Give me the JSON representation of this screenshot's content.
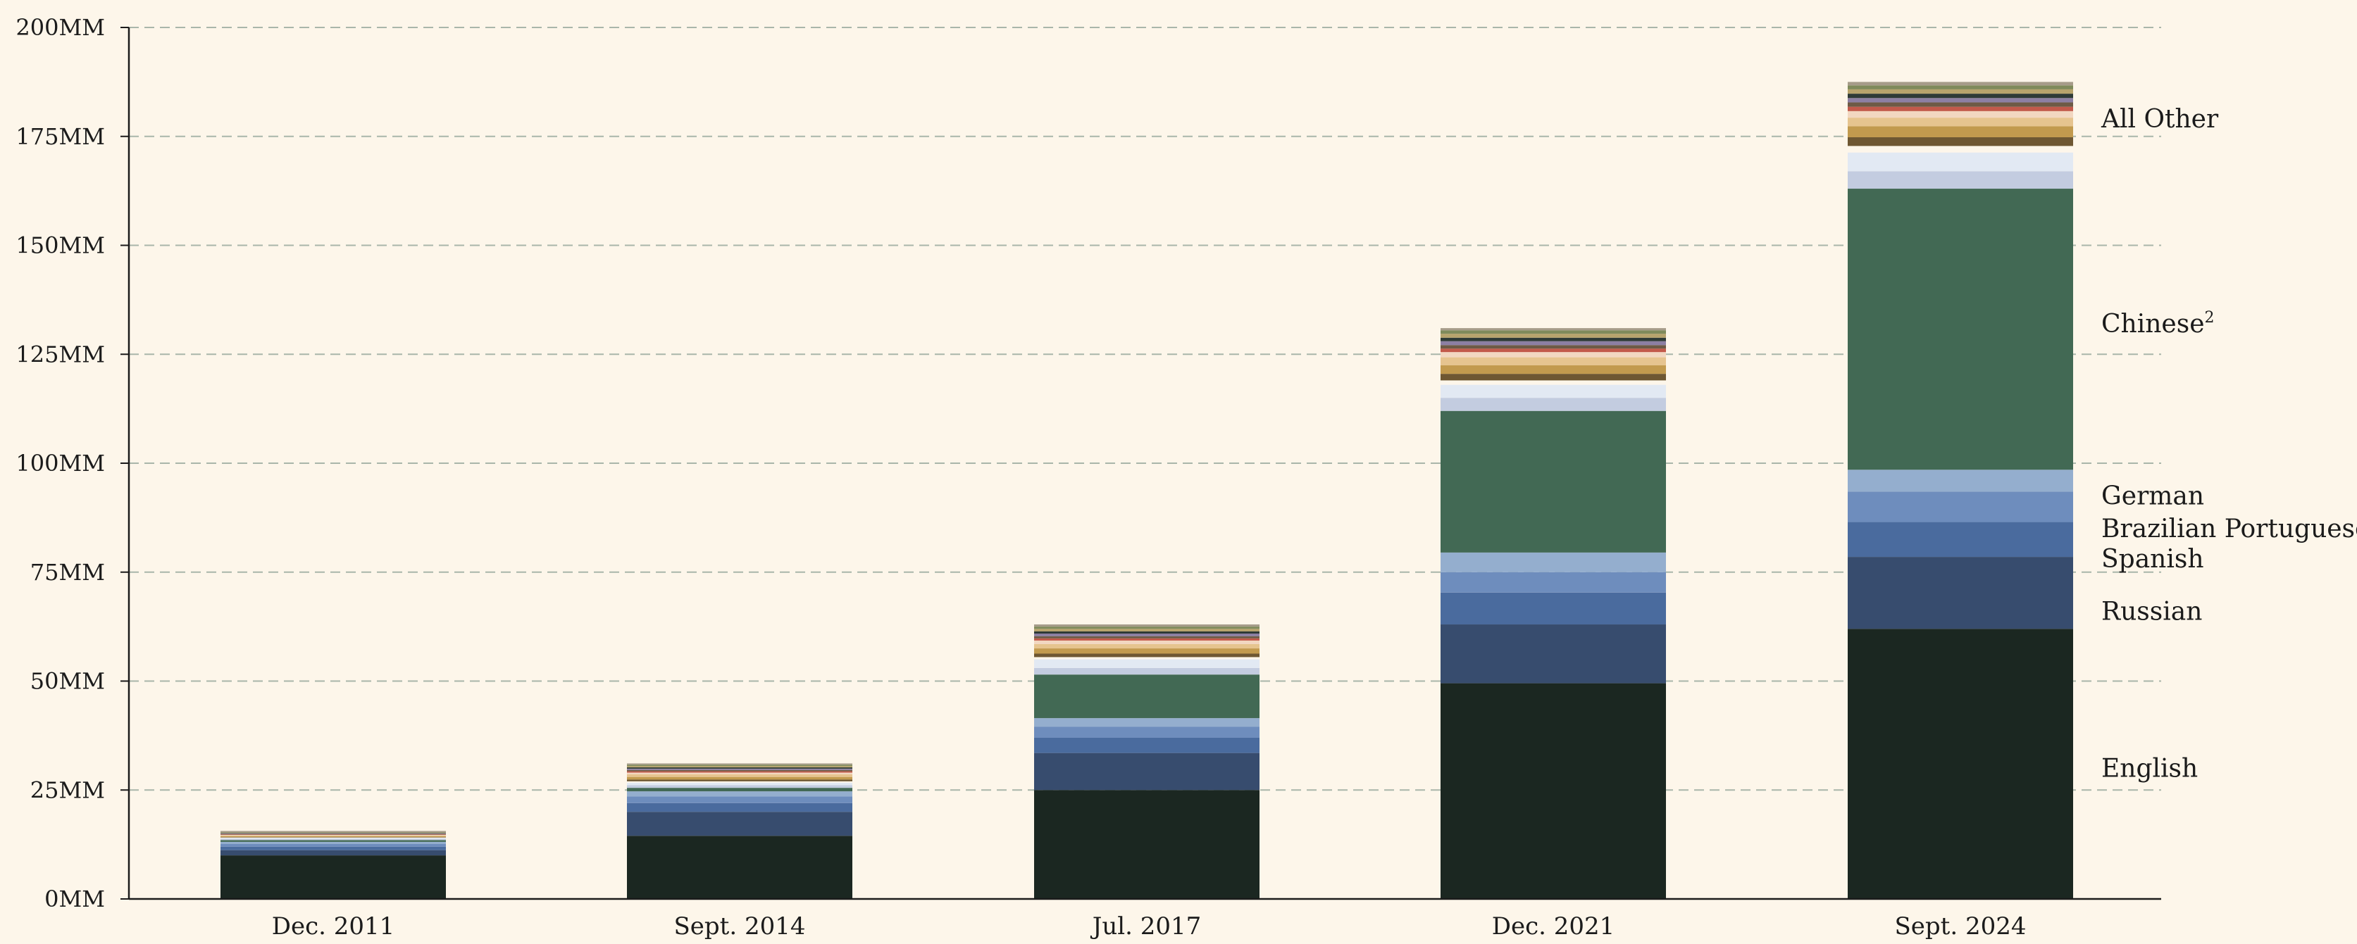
{
  "chart_data": {
    "type": "bar",
    "stacked": true,
    "grid": true,
    "categories": [
      "Dec. 2011",
      "Sept. 2014",
      "Jul. 2017",
      "Dec. 2021",
      "Sept. 2024"
    ],
    "ylim": [
      0,
      200
    ],
    "yticks": [
      0,
      25,
      50,
      75,
      100,
      125,
      150,
      175,
      200
    ],
    "ytick_labels": [
      "0MM",
      "25MM",
      "50MM",
      "75MM",
      "100MM",
      "125MM",
      "150MM",
      "175MM",
      "200MM"
    ],
    "series": [
      {
        "name": "English",
        "color": "#1b2721",
        "values": [
          10,
          14.5,
          25,
          49.5,
          62
        ]
      },
      {
        "name": "Russian",
        "color": "#374c6e",
        "values": [
          1.2,
          5.5,
          8.5,
          13.5,
          16.5
        ]
      },
      {
        "name": "Spanish",
        "color": "#4a6b9e",
        "values": [
          0.8,
          2,
          3.5,
          7.3,
          8
        ]
      },
      {
        "name": "Brazilian Portuguese",
        "color": "#6e8dbd",
        "values": [
          0.6,
          1.5,
          2.5,
          4.7,
          7
        ]
      },
      {
        "name": "German",
        "color": "#94aece",
        "values": [
          0.5,
          1.2,
          2,
          4.5,
          5
        ]
      },
      {
        "name": "Chinese",
        "label_sup": "2",
        "color": "#426954",
        "values": [
          0.4,
          0.8,
          10,
          32.5,
          64.5
        ]
      },
      {
        "color": "#c3cce0",
        "values": [
          0.3,
          0.6,
          1.5,
          3,
          4
        ]
      },
      {
        "color": "#e2e9f3",
        "values": [
          0.2,
          0.6,
          2,
          3,
          4.3
        ]
      },
      {
        "color": "#fdf6ea",
        "values": [
          0.1,
          0.3,
          0.5,
          1,
          1.5
        ]
      },
      {
        "color": "#6e5732",
        "values": [
          0.1,
          0.4,
          0.8,
          1.5,
          2
        ]
      },
      {
        "color": "#c29a4e",
        "values": [
          0.2,
          0.6,
          1.2,
          2,
          2.5
        ]
      },
      {
        "color": "#e6c48f",
        "values": [
          0.2,
          0.6,
          1,
          1.8,
          2
        ]
      },
      {
        "color": "#f2d7c1",
        "values": [
          0.1,
          0.4,
          0.8,
          1.2,
          1.5
        ]
      },
      {
        "color": "#c2594a",
        "values": [
          0.1,
          0.3,
          0.5,
          0.8,
          1
        ]
      },
      {
        "color": "#6d5a45",
        "values": [
          0.1,
          0.3,
          0.5,
          0.8,
          1
        ]
      },
      {
        "color": "#8c7fa3",
        "values": [
          0.1,
          0.3,
          0.6,
          0.9,
          1
        ]
      },
      {
        "color": "#2e3a36",
        "values": [
          0.1,
          0.3,
          0.5,
          0.8,
          1
        ]
      },
      {
        "color": "#b7a36c",
        "values": [
          0.1,
          0.3,
          0.6,
          0.9,
          1
        ]
      },
      {
        "color": "#7f8a5b",
        "values": [
          0.1,
          0.3,
          0.5,
          0.8,
          0.9
        ]
      },
      {
        "color": "#a69c8a",
        "values": [
          0.3,
          0.3,
          0.5,
          0.5,
          0.8
        ]
      }
    ],
    "right_labels": [
      {
        "text": "All Other",
        "y": 179
      },
      {
        "text": "Chinese",
        "sup": "2",
        "y": 132
      },
      {
        "text": "German",
        "y": 92.5
      },
      {
        "text": "Brazilian Portuguese",
        "y": 85
      },
      {
        "text": "Spanish",
        "y": 78
      },
      {
        "text": "Russian",
        "y": 66
      },
      {
        "text": "English",
        "y": 30
      }
    ],
    "colors": {
      "background": "#fdf6ea",
      "grid": "#a9b6aa",
      "axis": "#1b1b1b"
    }
  }
}
